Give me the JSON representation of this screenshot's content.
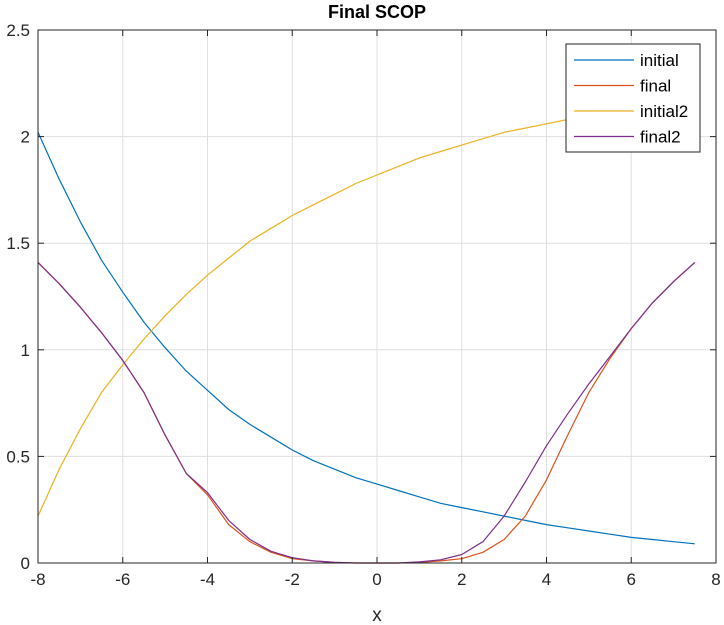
{
  "chart_data": {
    "type": "line",
    "title": "Final SCOP",
    "xlabel": "x",
    "ylabel": "",
    "xlim": [
      -8,
      8
    ],
    "ylim": [
      0,
      2.5
    ],
    "xticks": [
      "-8",
      "-6",
      "-4",
      "-2",
      "0",
      "2",
      "4",
      "6",
      "8"
    ],
    "yticks": [
      "0",
      "0.5",
      "1",
      "1.5",
      "2",
      "2.5"
    ],
    "grid": true,
    "legend_position": "top-right",
    "series": [
      {
        "name": "initial",
        "color": "#0072BD",
        "x": [
          -8,
          -7.5,
          -7,
          -6.5,
          -6,
          -5.5,
          -5,
          -4.5,
          -4,
          -3.5,
          -3,
          -2.5,
          -2,
          -1.5,
          -1,
          -0.5,
          0,
          0.5,
          1,
          1.5,
          2,
          2.5,
          3,
          3.5,
          4,
          4.5,
          5,
          5.5,
          6,
          6.5,
          7,
          7.5
        ],
        "y": [
          2.02,
          1.8,
          1.6,
          1.42,
          1.27,
          1.13,
          1.01,
          0.9,
          0.81,
          0.72,
          0.65,
          0.59,
          0.53,
          0.48,
          0.44,
          0.4,
          0.37,
          0.34,
          0.31,
          0.28,
          0.26,
          0.24,
          0.22,
          0.2,
          0.18,
          0.165,
          0.15,
          0.135,
          0.12,
          0.11,
          0.1,
          0.09
        ]
      },
      {
        "name": "final",
        "color": "#D95319",
        "x": [
          -8,
          -7.5,
          -7,
          -6.5,
          -6,
          -5.5,
          -5,
          -4.5,
          -4,
          -3.5,
          -3,
          -2.5,
          -2,
          -1.5,
          -1,
          -0.5,
          0,
          0.5,
          1,
          1.5,
          2,
          2.5,
          3,
          3.5,
          4,
          4.5,
          5,
          5.5,
          6,
          6.5,
          7,
          7.5
        ],
        "y": [
          1.41,
          1.31,
          1.2,
          1.08,
          0.95,
          0.8,
          0.6,
          0.42,
          0.32,
          0.18,
          0.1,
          0.05,
          0.02,
          0.01,
          0.003,
          0.0,
          0.0,
          0.0,
          0.003,
          0.01,
          0.02,
          0.05,
          0.11,
          0.22,
          0.39,
          0.6,
          0.8,
          0.96,
          1.1,
          1.22,
          1.32,
          1.41
        ]
      },
      {
        "name": "initial2",
        "color": "#EDB120",
        "x": [
          -8,
          -7.5,
          -7,
          -6.5,
          -6,
          -5.5,
          -5,
          -4.5,
          -4,
          -3.5,
          -3,
          -2.5,
          -2,
          -1.5,
          -1,
          -0.5,
          0,
          0.5,
          1,
          1.5,
          2,
          2.5,
          3,
          3.5,
          4,
          4.5
        ],
        "y": [
          0.22,
          0.44,
          0.63,
          0.8,
          0.93,
          1.05,
          1.16,
          1.26,
          1.35,
          1.43,
          1.51,
          1.57,
          1.63,
          1.68,
          1.73,
          1.78,
          1.82,
          1.86,
          1.9,
          1.93,
          1.96,
          1.99,
          2.02,
          2.04,
          2.06,
          2.08
        ]
      },
      {
        "name": "final2",
        "color": "#7E2F8E",
        "x": [
          -8,
          -7.5,
          -7,
          -6.5,
          -6,
          -5.5,
          -5,
          -4.5,
          -4,
          -3.5,
          -3,
          -2.5,
          -2,
          -1.5,
          -1,
          -0.5,
          0,
          0.5,
          1,
          1.5,
          2,
          2.5,
          3,
          3.5,
          4,
          4.5,
          5,
          5.5,
          6,
          6.5,
          7,
          7.5
        ],
        "y": [
          1.41,
          1.31,
          1.2,
          1.08,
          0.95,
          0.8,
          0.6,
          0.42,
          0.33,
          0.2,
          0.11,
          0.055,
          0.025,
          0.01,
          0.003,
          0.0,
          0.0,
          0.0,
          0.005,
          0.015,
          0.04,
          0.1,
          0.22,
          0.38,
          0.55,
          0.7,
          0.84,
          0.97,
          1.1,
          1.22,
          1.32,
          1.41
        ]
      }
    ]
  }
}
